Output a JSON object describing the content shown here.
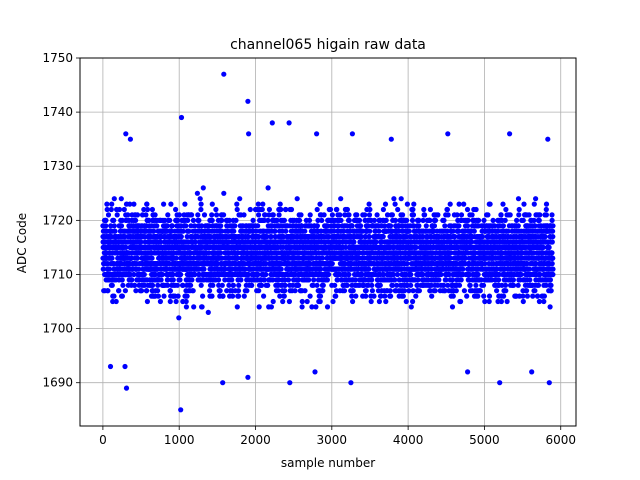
{
  "chart_data": {
    "type": "scatter",
    "title": "channel065 higain raw data",
    "xlabel": "sample number",
    "ylabel": "ADC Code",
    "xlim": [
      -300,
      6200
    ],
    "ylim": [
      1682,
      1750
    ],
    "x_ticks": [
      0,
      1000,
      2000,
      3000,
      4000,
      5000,
      6000
    ],
    "y_ticks": [
      1690,
      1700,
      1710,
      1720,
      1730,
      1740,
      1750
    ],
    "grid": true,
    "legend": "none",
    "marker_color": "#0000ff",
    "series": [
      {
        "x_range": [
          0,
          5900
        ],
        "n_points": 5900,
        "typical_range": [
          1696,
          1726
        ],
        "center": 1714,
        "outliers": [
          {
            "x": 1585,
            "y": 1747
          },
          {
            "x": 1900,
            "y": 1742
          },
          {
            "x": 1030,
            "y": 1739
          },
          {
            "x": 2220,
            "y": 1738
          },
          {
            "x": 2440,
            "y": 1738
          },
          {
            "x": 300,
            "y": 1736
          },
          {
            "x": 360,
            "y": 1735
          },
          {
            "x": 1910,
            "y": 1736
          },
          {
            "x": 2800,
            "y": 1736
          },
          {
            "x": 3270,
            "y": 1736
          },
          {
            "x": 3780,
            "y": 1735
          },
          {
            "x": 4520,
            "y": 1736
          },
          {
            "x": 5330,
            "y": 1736
          },
          {
            "x": 5830,
            "y": 1735
          },
          {
            "x": 1020,
            "y": 1685
          },
          {
            "x": 310,
            "y": 1689
          },
          {
            "x": 2450,
            "y": 1690
          },
          {
            "x": 3250,
            "y": 1690
          },
          {
            "x": 5200,
            "y": 1690
          },
          {
            "x": 5850,
            "y": 1690
          },
          {
            "x": 1570,
            "y": 1690
          },
          {
            "x": 1900,
            "y": 1691
          },
          {
            "x": 2780,
            "y": 1692
          },
          {
            "x": 4780,
            "y": 1692
          },
          {
            "x": 5620,
            "y": 1692
          },
          {
            "x": 100,
            "y": 1693
          },
          {
            "x": 290,
            "y": 1693
          }
        ]
      }
    ]
  }
}
